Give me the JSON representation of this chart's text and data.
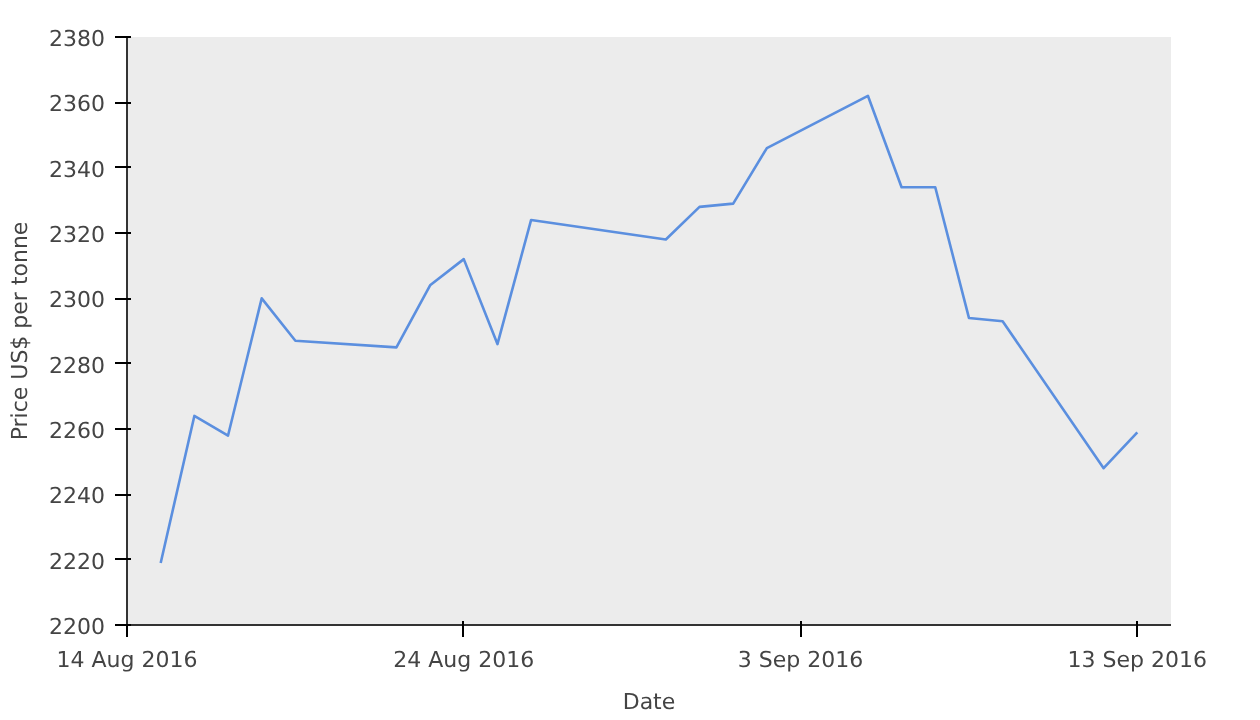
{
  "chart_data": {
    "type": "line",
    "xlabel": "Date",
    "ylabel": "Price US$ per tonne",
    "x": [
      "2016-08-15",
      "2016-08-16",
      "2016-08-17",
      "2016-08-18",
      "2016-08-19",
      "2016-08-22",
      "2016-08-23",
      "2016-08-24",
      "2016-08-25",
      "2016-08-26",
      "2016-08-30",
      "2016-08-31",
      "2016-09-01",
      "2016-09-02",
      "2016-09-05",
      "2016-09-06",
      "2016-09-07",
      "2016-09-08",
      "2016-09-09",
      "2016-09-12",
      "2016-09-13"
    ],
    "series": [
      {
        "color": "#5b8fdf",
        "values": [
          2219,
          2264,
          2258,
          2300,
          2287,
          2285,
          2304,
          2312,
          2286,
          2324,
          2318,
          2328,
          2329,
          2346,
          2362,
          2334,
          2334,
          2294,
          2293,
          2248,
          2259
        ]
      }
    ],
    "xlim": [
      "2016-08-14",
      "2016-09-14"
    ],
    "ylim": [
      2200,
      2380
    ],
    "xticks": [
      {
        "value": "2016-08-14",
        "label": "14 Aug 2016"
      },
      {
        "value": "2016-08-24",
        "label": "24 Aug 2016"
      },
      {
        "value": "2016-09-03",
        "label": "3 Sep 2016"
      },
      {
        "value": "2016-09-13",
        "label": "13 Sep 2016"
      }
    ],
    "yticks": [
      2200,
      2220,
      2240,
      2260,
      2280,
      2300,
      2320,
      2340,
      2360,
      2380
    ],
    "grid": false,
    "marker": "none",
    "line_style": "solid"
  }
}
